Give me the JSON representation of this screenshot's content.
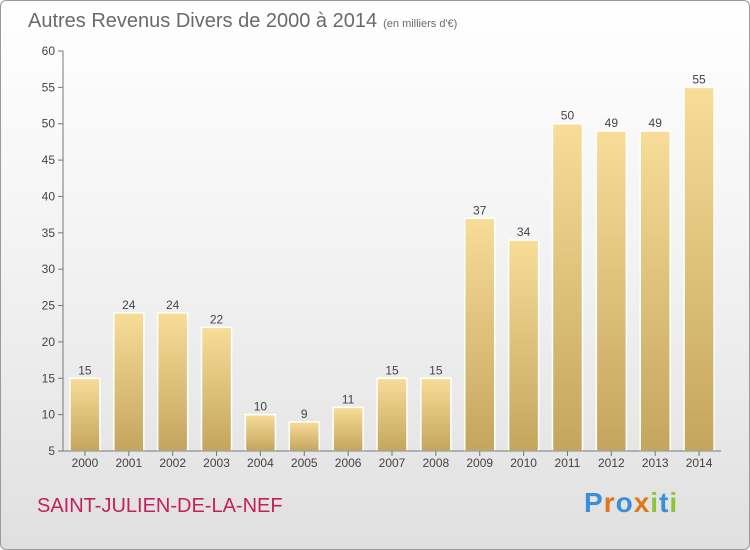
{
  "header": {
    "title": "Autres Revenus Divers de 2000 à 2014",
    "subtitle": "(en milliers d'€)"
  },
  "footer": {
    "commune": "SAINT-JULIEN-DE-LA-NEF",
    "brand": "Proxiti"
  },
  "colors": {
    "bar_top": "#f7dd98",
    "bar_bottom": "#c4a55e",
    "commune": "#c51f5d",
    "brand_letters": [
      "#3a8fd6",
      "#e0761b",
      "#3a8fd6",
      "#e0761b",
      "#8cc43c",
      "#3a8fd6",
      "#8cc43c"
    ]
  },
  "chart_data": {
    "type": "bar",
    "title": "Autres Revenus Divers de 2000 à 2014",
    "subtitle": "(en milliers d'€)",
    "categories": [
      "2000",
      "2001",
      "2002",
      "2003",
      "2004",
      "2005",
      "2006",
      "2007",
      "2008",
      "2009",
      "2010",
      "2011",
      "2012",
      "2013",
      "2014"
    ],
    "values": [
      15,
      24,
      24,
      22,
      10,
      9,
      11,
      15,
      15,
      37,
      34,
      50,
      49,
      49,
      55
    ],
    "ylim": [
      5,
      60
    ],
    "yticks": [
      5,
      10,
      15,
      20,
      25,
      30,
      35,
      40,
      45,
      50,
      55,
      60
    ],
    "grid": false,
    "data_labels": true
  }
}
